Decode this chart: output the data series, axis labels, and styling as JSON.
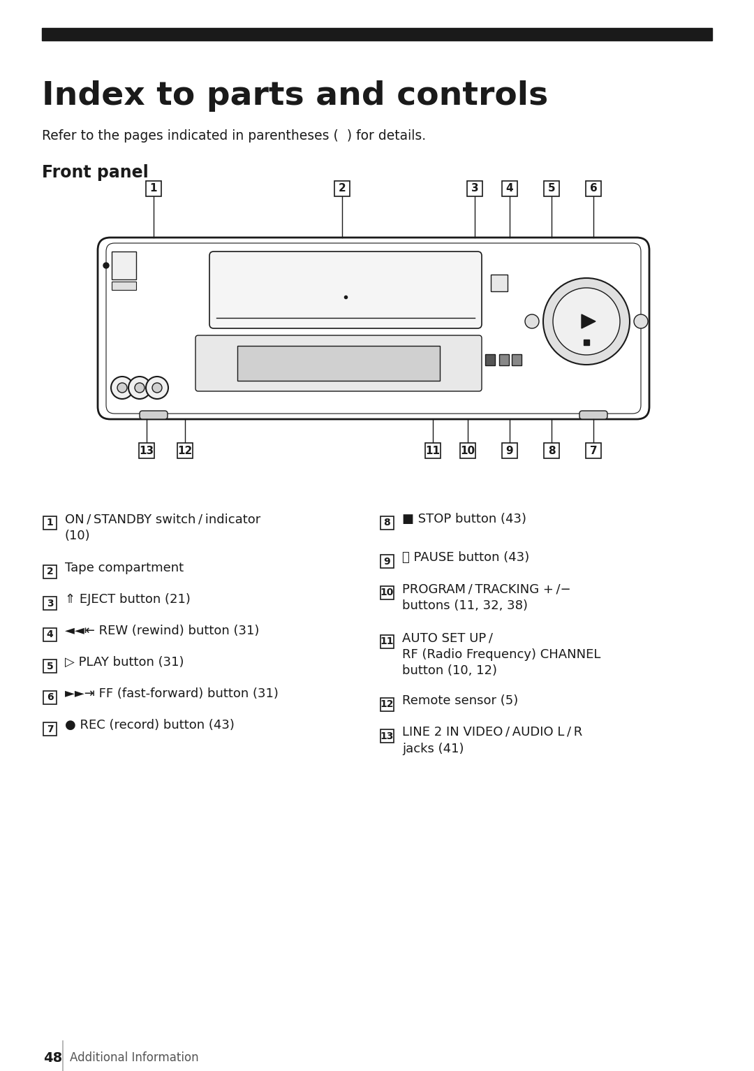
{
  "title": "Index to parts and controls",
  "subtitle": "Refer to the pages indicated in parentheses (  ) for details.",
  "section": "Front panel",
  "bg_color": "#ffffff",
  "text_color": "#1a1a1a",
  "header_bar_color": "#1a1a1a",
  "page_number": "48",
  "page_label": "Additional Information",
  "items_left": [
    {
      "num": "1",
      "text": "ON / STANDBY switch / indicator\n(10)"
    },
    {
      "num": "2",
      "text": "Tape compartment"
    },
    {
      "num": "3",
      "text": "⇑ EJECT button (21)"
    },
    {
      "num": "4",
      "text": "◄◄⇤ REW (rewind) button (31)"
    },
    {
      "num": "5",
      "text": "▷ PLAY button (31)"
    },
    {
      "num": "6",
      "text": "►►⇥ FF (fast-forward) button (31)"
    },
    {
      "num": "7",
      "text": "● REC (record) button (43)"
    }
  ],
  "items_right": [
    {
      "num": "8",
      "text": "■ STOP button (43)"
    },
    {
      "num": "9",
      "text": "⏸ PAUSE button (43)"
    },
    {
      "num": "10",
      "text": "PROGRAM / TRACKING + /−\nbuttons (11, 32, 38)"
    },
    {
      "num": "11",
      "text": "AUTO SET UP /\nRF (Radio Frequency) CHANNEL\nbutton (10, 12)"
    },
    {
      "num": "12",
      "text": "Remote sensor (5)"
    },
    {
      "num": "13",
      "text": "LINE 2 IN VIDEO / AUDIO L / R\njacks (41)"
    }
  ]
}
